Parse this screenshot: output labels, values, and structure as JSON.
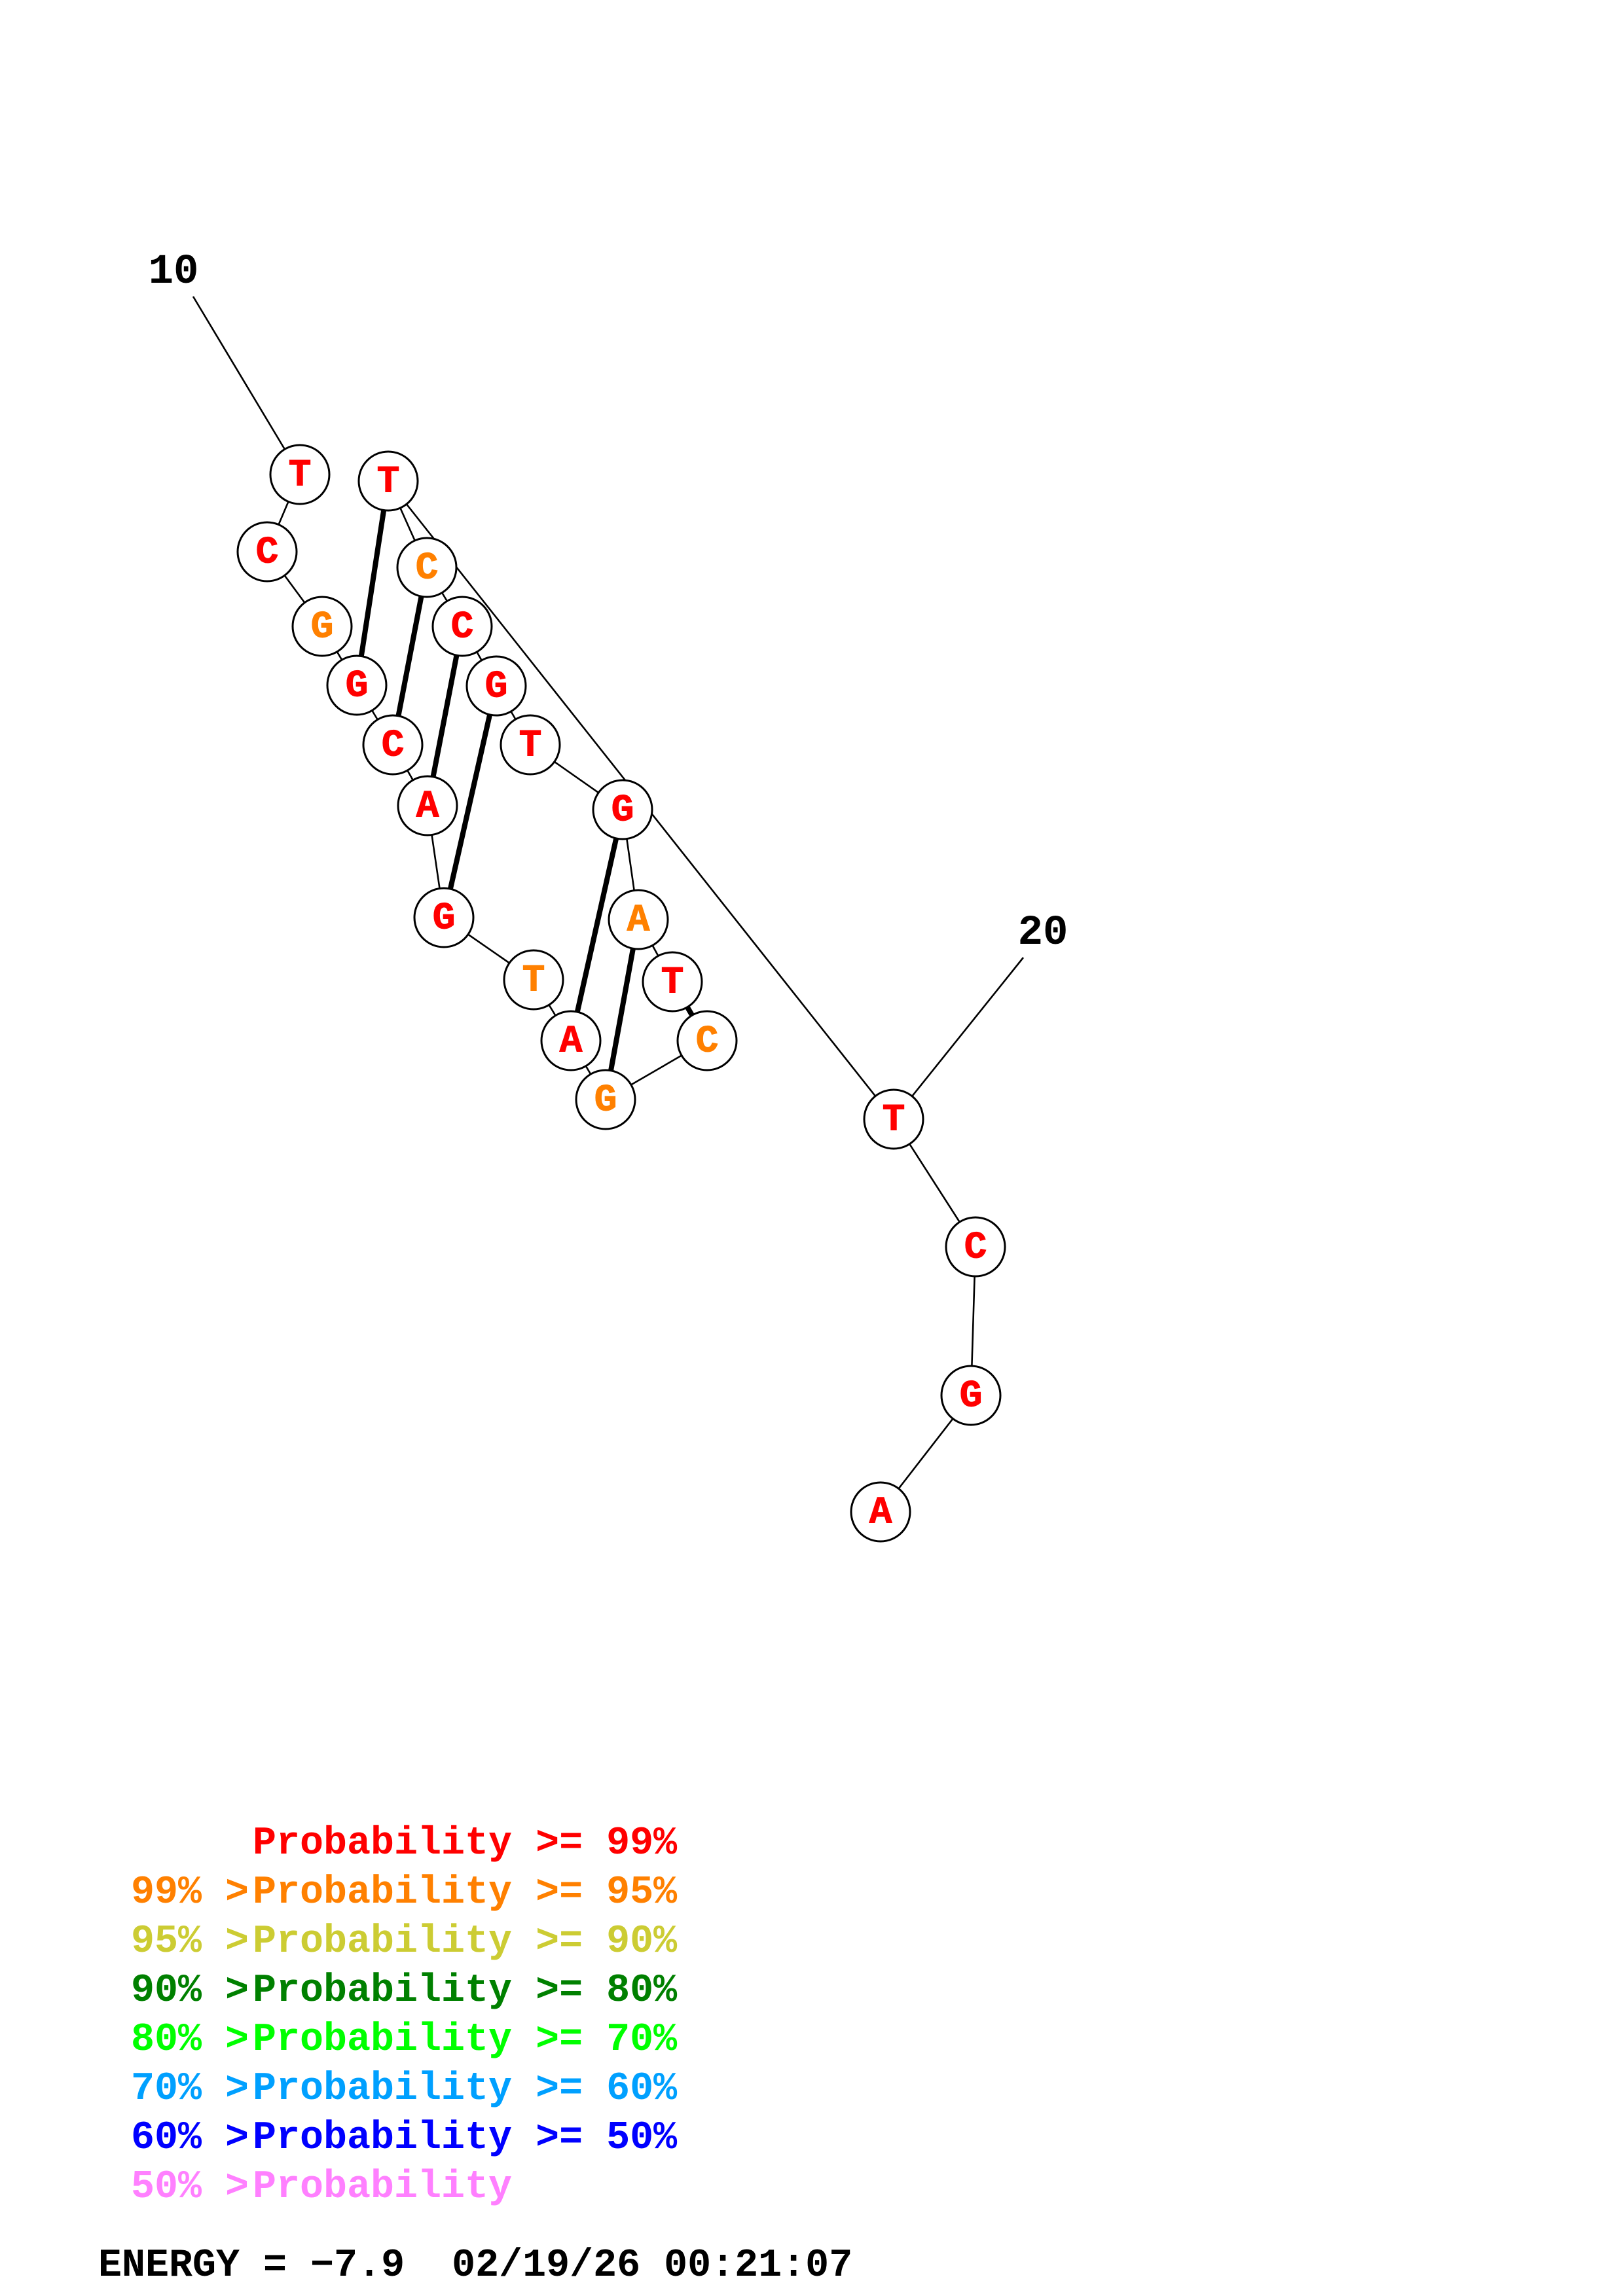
{
  "structure": {
    "start_label": "10",
    "end_label": "20",
    "nucleotides": [
      {
        "base": "T",
        "color": "#ff0000"
      },
      {
        "base": "C",
        "color": "#ff0000"
      },
      {
        "base": "G",
        "color": "#ff8000"
      },
      {
        "base": "G",
        "color": "#ff0000"
      },
      {
        "base": "C",
        "color": "#ff0000"
      },
      {
        "base": "A",
        "color": "#ff0000"
      },
      {
        "base": "G",
        "color": "#ff0000"
      },
      {
        "base": "T",
        "color": "#ff8000"
      },
      {
        "base": "A",
        "color": "#ff0000"
      },
      {
        "base": "G",
        "color": "#ff8000"
      },
      {
        "base": "C",
        "color": "#ff8000"
      },
      {
        "base": "T",
        "color": "#ff0000"
      },
      {
        "base": "A",
        "color": "#ff8000"
      },
      {
        "base": "G",
        "color": "#ff0000"
      },
      {
        "base": "T",
        "color": "#ff0000"
      },
      {
        "base": "G",
        "color": "#ff0000"
      },
      {
        "base": "C",
        "color": "#ff0000"
      },
      {
        "base": "C",
        "color": "#ff8000"
      },
      {
        "base": "T",
        "color": "#ff0000"
      },
      {
        "base": "T",
        "color": "#ff0000"
      },
      {
        "base": "C",
        "color": "#ff0000"
      },
      {
        "base": "G",
        "color": "#ff0000"
      },
      {
        "base": "A",
        "color": "#ff0000"
      }
    ],
    "pairs": [
      [
        3,
        18
      ],
      [
        4,
        17
      ],
      [
        5,
        16
      ],
      [
        6,
        15
      ],
      [
        8,
        13
      ],
      [
        9,
        12
      ],
      [
        10,
        11
      ]
    ]
  },
  "legend": [
    {
      "threshold": "",
      "text": "Probability >= 99%",
      "color": "#ff0000"
    },
    {
      "threshold": "99% >",
      "text": "Probability >= 95%",
      "color": "#ff8000"
    },
    {
      "threshold": "95% >",
      "text": "Probability >= 90%",
      "color": "#cccc33"
    },
    {
      "threshold": "90% >",
      "text": "Probability >= 80%",
      "color": "#008000"
    },
    {
      "threshold": "80% >",
      "text": "Probability >= 70%",
      "color": "#00ff00"
    },
    {
      "threshold": "70% >",
      "text": "Probability >= 60%",
      "color": "#00a0ff"
    },
    {
      "threshold": "60% >",
      "text": "Probability >= 50%",
      "color": "#0000ff"
    },
    {
      "threshold": "50% >",
      "text": "Probability",
      "color": "#ff80ff"
    }
  ],
  "footer": {
    "energy": "ENERGY = −7.9",
    "timestamp": "02/19/26 00:21:07"
  }
}
